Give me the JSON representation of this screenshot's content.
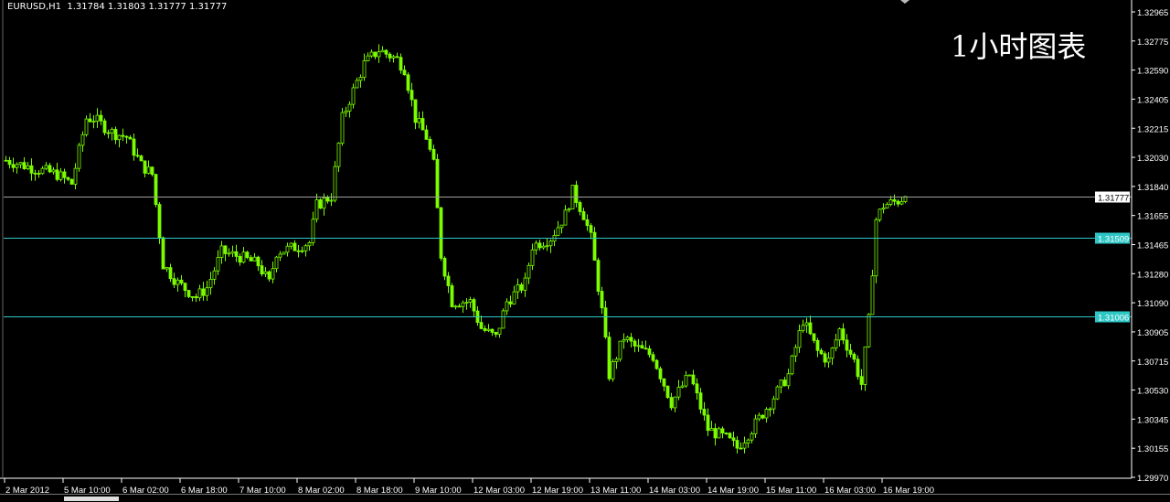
{
  "header": {
    "symbol": "EURUSD,H1",
    "ohlc": "1.31784 1.31803 1.31777 1.31777"
  },
  "watermark": "1小时图表",
  "colors": {
    "background": "#000000",
    "candle": "#7CFC00",
    "axis": "#FFFFFF",
    "hline": "#2FC6C6",
    "bid_line": "#A0A0A0"
  },
  "chart_data": {
    "type": "candlestick",
    "title": "EURUSD,H1",
    "timeframe": "H1",
    "ylim": [
      1.2997,
      1.32965
    ],
    "y_ticks": [
      "1.32965",
      "1.32775",
      "1.32590",
      "1.32405",
      "1.32215",
      "1.32030",
      "1.31840",
      "1.31655",
      "1.31465",
      "1.31280",
      "1.31090",
      "1.30905",
      "1.30715",
      "1.30530",
      "1.30345",
      "1.30155",
      "1.29970"
    ],
    "x_ticks": [
      "2 Mar 2012",
      "5 Mar 10:00",
      "6 Mar 02:00",
      "6 Mar 18:00",
      "7 Mar 10:00",
      "8 Mar 02:00",
      "8 Mar 18:00",
      "9 Mar 10:00",
      "12 Mar 03:00",
      "12 Mar 19:00",
      "13 Mar 11:00",
      "14 Mar 03:00",
      "14 Mar 19:00",
      "15 Mar 11:00",
      "16 Mar 03:00",
      "16 Mar 19:00"
    ],
    "close_path_by_hour_bar": [
      [
        0,
        1.3201
      ],
      [
        9,
        1.3195
      ],
      [
        14,
        1.3192
      ],
      [
        18,
        1.3186
      ],
      [
        22,
        1.3228
      ],
      [
        24,
        1.3228
      ],
      [
        29,
        1.3219
      ],
      [
        33,
        1.3216
      ],
      [
        37,
        1.3198
      ],
      [
        40,
        1.3192
      ],
      [
        43,
        1.3134
      ],
      [
        47,
        1.3122
      ],
      [
        52,
        1.3113
      ],
      [
        55,
        1.3119
      ],
      [
        59,
        1.3142
      ],
      [
        64,
        1.3139
      ],
      [
        69,
        1.3134
      ],
      [
        72,
        1.3122
      ],
      [
        74,
        1.3142
      ],
      [
        79,
        1.3145
      ],
      [
        83,
        1.3148
      ],
      [
        85,
        1.3172
      ],
      [
        89,
        1.3178
      ],
      [
        92,
        1.3228
      ],
      [
        94,
        1.324
      ],
      [
        98,
        1.3263
      ],
      [
        102,
        1.3272
      ],
      [
        107,
        1.3266
      ],
      [
        109,
        1.326
      ],
      [
        112,
        1.3228
      ],
      [
        115,
        1.3216
      ],
      [
        117,
        1.3198
      ],
      [
        119,
        1.314
      ],
      [
        122,
        1.311
      ],
      [
        127,
        1.311
      ],
      [
        130,
        1.3093
      ],
      [
        134,
        1.3087
      ],
      [
        137,
        1.311
      ],
      [
        142,
        1.3122
      ],
      [
        144,
        1.3146
      ],
      [
        149,
        1.3151
      ],
      [
        153,
        1.3166
      ],
      [
        155,
        1.3181
      ],
      [
        158,
        1.3166
      ],
      [
        160,
        1.3151
      ],
      [
        163,
        1.3104
      ],
      [
        165,
        1.3063
      ],
      [
        169,
        1.3087
      ],
      [
        172,
        1.3081
      ],
      [
        177,
        1.3075
      ],
      [
        182,
        1.3045
      ],
      [
        187,
        1.3063
      ],
      [
        192,
        1.3028
      ],
      [
        197,
        1.3022
      ],
      [
        200,
        1.3016
      ],
      [
        204,
        1.3028
      ],
      [
        209,
        1.3045
      ],
      [
        214,
        1.3063
      ],
      [
        218,
        1.3098
      ],
      [
        222,
        1.3078
      ],
      [
        225,
        1.3072
      ],
      [
        228,
        1.3092
      ],
      [
        232,
        1.3072
      ],
      [
        234,
        1.3057
      ],
      [
        236,
        1.3098
      ],
      [
        238,
        1.3163
      ],
      [
        240,
        1.3172
      ],
      [
        244,
        1.3175
      ],
      [
        246,
        1.31777
      ]
    ],
    "horizontal_lines": [
      {
        "price": 1.31777,
        "label": "1.31777",
        "kind": "bid"
      },
      {
        "price": 1.31509,
        "label": "1.31509",
        "kind": "level"
      },
      {
        "price": 1.31006,
        "label": "1.31006",
        "kind": "level"
      }
    ],
    "grid": false
  }
}
